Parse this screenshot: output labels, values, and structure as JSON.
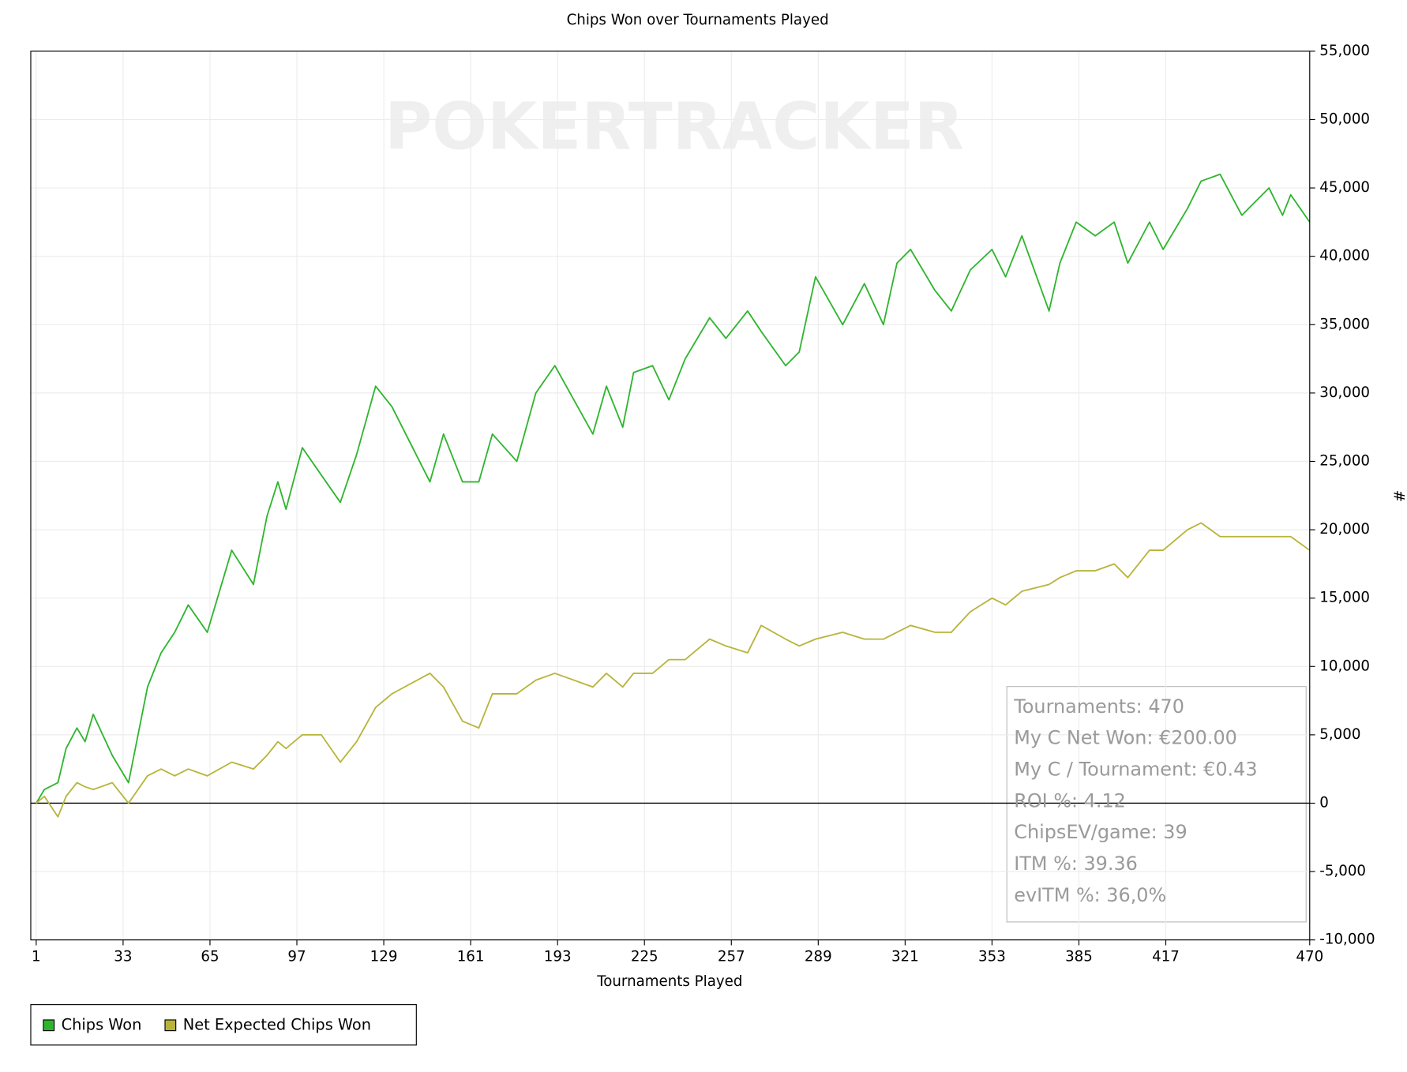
{
  "chart_data": {
    "type": "line",
    "title": "Chips Won over Tournaments Played",
    "xlabel": "Tournaments Played",
    "ylabel": "#",
    "watermark": "POKERTRACKER",
    "x": [
      1,
      4,
      9,
      12,
      16,
      19,
      22,
      29,
      35,
      42,
      47,
      52,
      57,
      64,
      73,
      81,
      86,
      90,
      93,
      99,
      106,
      113,
      119,
      126,
      132,
      146,
      151,
      158,
      164,
      169,
      178,
      185,
      192,
      206,
      211,
      217,
      221,
      228,
      234,
      240,
      249,
      255,
      263,
      268,
      277,
      282,
      288,
      298,
      306,
      313,
      318,
      323,
      332,
      338,
      345,
      353,
      358,
      364,
      374,
      378,
      384,
      391,
      398,
      403,
      411,
      416,
      425,
      430,
      437,
      445,
      455,
      460,
      463,
      470
    ],
    "series": [
      {
        "name": "Chips Won",
        "color": "#2eb52e",
        "values": [
          0,
          1000,
          1500,
          4000,
          5500,
          4500,
          6500,
          3500,
          1500,
          8500,
          11000,
          12500,
          14500,
          12500,
          18500,
          16000,
          21000,
          23500,
          21500,
          26000,
          24000,
          22000,
          25500,
          30500,
          29000,
          23500,
          27000,
          23500,
          23500,
          27000,
          25000,
          30000,
          32000,
          27000,
          30500,
          27500,
          31500,
          32000,
          29500,
          32500,
          35500,
          34000,
          36000,
          34500,
          32000,
          33000,
          38500,
          35000,
          38000,
          35000,
          39500,
          40500,
          37500,
          36000,
          39000,
          40500,
          38500,
          41500,
          36000,
          39500,
          42500,
          41500,
          42500,
          39500,
          42500,
          40500,
          43500,
          45500,
          46000,
          43000,
          45000,
          43000,
          44500,
          42500
        ]
      },
      {
        "name": "Net Expected Chips Won",
        "color": "#b8b43a",
        "values": [
          0,
          500,
          -1000,
          500,
          1500,
          1200,
          1000,
          1500,
          0,
          2000,
          2500,
          2000,
          2500,
          2000,
          3000,
          2500,
          3500,
          4500,
          4000,
          5000,
          5000,
          3000,
          4500,
          7000,
          8000,
          9500,
          8500,
          6000,
          5500,
          8000,
          8000,
          9000,
          9500,
          8500,
          9500,
          8500,
          9500,
          9500,
          10500,
          10500,
          12000,
          11500,
          11000,
          13000,
          12000,
          11500,
          12000,
          12500,
          12000,
          12000,
          12500,
          13000,
          12500,
          12500,
          14000,
          15000,
          14500,
          15500,
          16000,
          16500,
          17000,
          17000,
          17500,
          16500,
          18500,
          18500,
          20000,
          20500,
          19500,
          19500,
          19500,
          19500,
          19500,
          18500
        ]
      }
    ],
    "xlim": [
      -1,
      470
    ],
    "ylim": [
      -10000,
      55000
    ],
    "xticks": [
      1,
      33,
      65,
      97,
      129,
      161,
      193,
      225,
      257,
      289,
      321,
      353,
      385,
      417,
      470
    ],
    "yticks": [
      {
        "value": -10000,
        "label": "-10,000"
      },
      {
        "value": -5000,
        "label": "-5,000"
      },
      0,
      {
        "value": 5000,
        "label": "5,000"
      },
      {
        "value": 10000,
        "label": "10,000"
      },
      {
        "value": 15000,
        "label": "15,000"
      },
      {
        "value": 20000,
        "label": "20,000"
      },
      {
        "value": 25000,
        "label": "25,000"
      },
      {
        "value": 30000,
        "label": "30,000"
      },
      {
        "value": 35000,
        "label": "35,000"
      },
      {
        "value": 40000,
        "label": "40,000"
      },
      {
        "value": 45000,
        "label": "45,000"
      },
      {
        "value": 50000,
        "label": "50,000"
      },
      {
        "value": 55000,
        "label": "55,000"
      }
    ],
    "grid": true,
    "legend": "bottom-left",
    "stats": [
      "Tournaments: 470",
      "My C Net Won: €200.00",
      "My C / Tournament: €0.43",
      "ROI %: 4.12",
      "ChipsEV/game: 39",
      "ITM %: 39.36",
      "evITM %: 36,0%"
    ]
  }
}
